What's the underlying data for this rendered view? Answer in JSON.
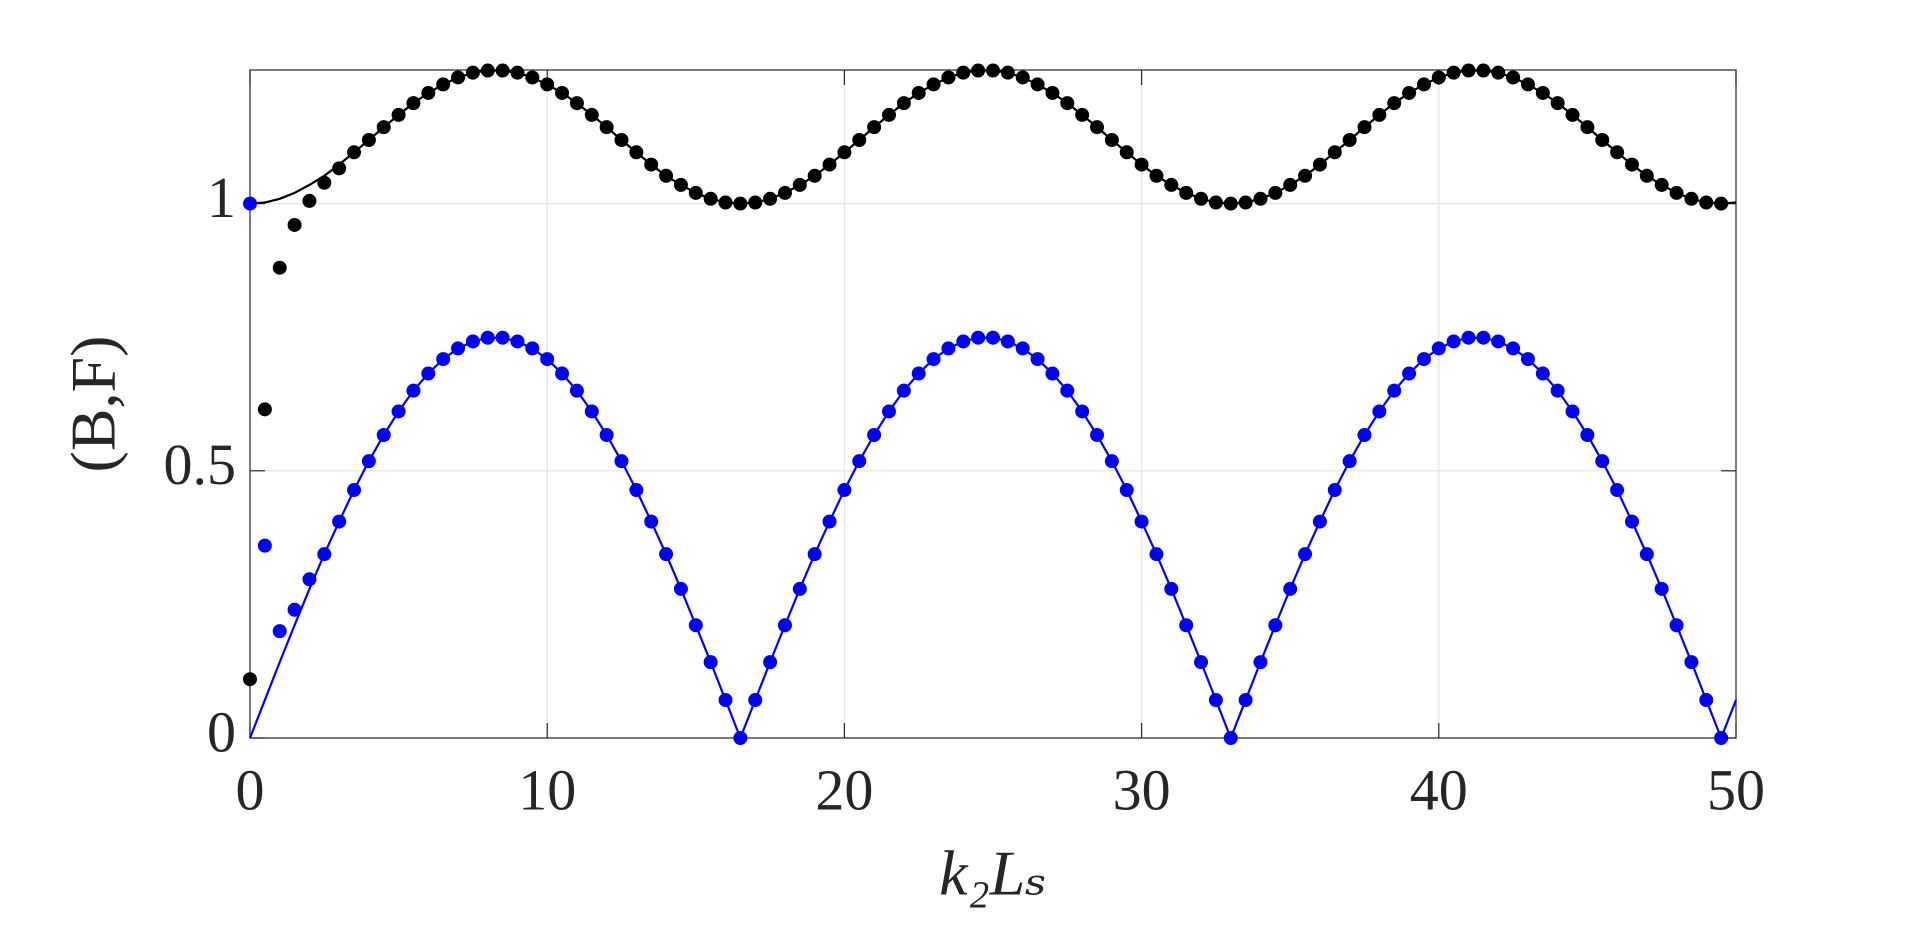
{
  "chart_data": {
    "type": "line",
    "ylabel": "(B,F)",
    "xlabel": "k₂Lₛ",
    "x": [
      0,
      0.5,
      1,
      1.5,
      2,
      2.5,
      3,
      3.5,
      4,
      4.5,
      5,
      5.5,
      6,
      6.5,
      7,
      7.5,
      8,
      8.5,
      9,
      9.5,
      10,
      10.5,
      11,
      11.5,
      12,
      12.5,
      13,
      13.5,
      14,
      14.5,
      15,
      15.5,
      16,
      16.5,
      17,
      17.5,
      18,
      18.5,
      19,
      19.5,
      20,
      20.5,
      21,
      21.5,
      22,
      22.5,
      23,
      23.5,
      24,
      24.5,
      25,
      25.5,
      26,
      26.5,
      27,
      27.5,
      28,
      28.5,
      29,
      29.5,
      30,
      30.5,
      31,
      31.5,
      32,
      32.5,
      33,
      33.5,
      34,
      34.5,
      35,
      35.5,
      36,
      36.5,
      37,
      37.5,
      38,
      38.5,
      39,
      39.5,
      40,
      40.5,
      41,
      41.5,
      42,
      42.5,
      43,
      43.5,
      44,
      44.5,
      45,
      45.5,
      46,
      46.5,
      47,
      47.5,
      48,
      48.5,
      49,
      49.5,
      50
    ],
    "series": [
      {
        "style": "line",
        "color": "#000000",
        "values": [
          1,
          1.002,
          1.009,
          1.02,
          1.035,
          1.052,
          1.073,
          1.096,
          1.119,
          1.143,
          1.166,
          1.188,
          1.207,
          1.223,
          1.236,
          1.245,
          1.249,
          1.249,
          1.245,
          1.236,
          1.223,
          1.207,
          1.188,
          1.166,
          1.143,
          1.119,
          1.096,
          1.073,
          1.052,
          1.035,
          1.02,
          1.009,
          1.002,
          1,
          1.002,
          1.009,
          1.02,
          1.035,
          1.052,
          1.073,
          1.096,
          1.119,
          1.143,
          1.166,
          1.188,
          1.207,
          1.223,
          1.236,
          1.245,
          1.249,
          1.249,
          1.245,
          1.236,
          1.223,
          1.207,
          1.188,
          1.166,
          1.143,
          1.119,
          1.096,
          1.073,
          1.052,
          1.035,
          1.02,
          1.009,
          1.002,
          1,
          1.002,
          1.009,
          1.02,
          1.035,
          1.052,
          1.073,
          1.096,
          1.119,
          1.143,
          1.166,
          1.188,
          1.207,
          1.223,
          1.236,
          1.245,
          1.249,
          1.249,
          1.245,
          1.236,
          1.223,
          1.207,
          1.188,
          1.166,
          1.143,
          1.119,
          1.096,
          1.073,
          1.052,
          1.035,
          1.02,
          1.009,
          1.002,
          1,
          1.002
        ]
      },
      {
        "style": "line",
        "color": "#0000ff",
        "values": [
          0,
          0.071,
          0.142,
          0.211,
          0.279,
          0.344,
          0.405,
          0.464,
          0.518,
          0.567,
          0.611,
          0.65,
          0.682,
          0.709,
          0.729,
          0.742,
          0.749,
          0.749,
          0.742,
          0.729,
          0.709,
          0.682,
          0.65,
          0.611,
          0.567,
          0.518,
          0.464,
          0.405,
          0.344,
          0.279,
          0.211,
          0.142,
          0.071,
          0,
          0.071,
          0.142,
          0.211,
          0.279,
          0.344,
          0.405,
          0.464,
          0.518,
          0.567,
          0.611,
          0.65,
          0.682,
          0.709,
          0.729,
          0.742,
          0.749,
          0.749,
          0.742,
          0.729,
          0.709,
          0.682,
          0.65,
          0.611,
          0.567,
          0.518,
          0.464,
          0.405,
          0.344,
          0.279,
          0.211,
          0.142,
          0.071,
          0,
          0.071,
          0.142,
          0.211,
          0.279,
          0.344,
          0.405,
          0.464,
          0.518,
          0.567,
          0.611,
          0.65,
          0.682,
          0.709,
          0.729,
          0.742,
          0.749,
          0.749,
          0.742,
          0.729,
          0.709,
          0.682,
          0.65,
          0.611,
          0.567,
          0.518,
          0.464,
          0.405,
          0.344,
          0.279,
          0.211,
          0.142,
          0.071,
          0,
          0.071
        ]
      },
      {
        "style": "markers",
        "color": "#000000",
        "values": [
          0.11,
          0.615,
          0.88,
          0.96,
          1.005,
          1.039,
          1.066,
          1.096,
          1.119,
          1.143,
          1.166,
          1.188,
          1.207,
          1.223,
          1.236,
          1.245,
          1.249,
          1.249,
          1.245,
          1.236,
          1.223,
          1.207,
          1.188,
          1.166,
          1.143,
          1.119,
          1.096,
          1.073,
          1.052,
          1.035,
          1.02,
          1.009,
          1.002,
          1,
          1.002,
          1.009,
          1.02,
          1.035,
          1.052,
          1.073,
          1.096,
          1.119,
          1.143,
          1.166,
          1.188,
          1.207,
          1.223,
          1.236,
          1.245,
          1.249,
          1.249,
          1.245,
          1.236,
          1.223,
          1.207,
          1.188,
          1.166,
          1.143,
          1.119,
          1.096,
          1.073,
          1.052,
          1.035,
          1.02,
          1.009,
          1.002,
          1,
          1.002,
          1.009,
          1.02,
          1.035,
          1.052,
          1.073,
          1.096,
          1.119,
          1.143,
          1.166,
          1.188,
          1.207,
          1.223,
          1.236,
          1.245,
          1.249,
          1.249,
          1.245,
          1.236,
          1.223,
          1.207,
          1.188,
          1.166,
          1.143,
          1.119,
          1.096,
          1.073,
          1.052,
          1.035,
          1.02,
          1.009,
          1.002,
          1,
          null
        ]
      },
      {
        "style": "markers",
        "color": "#0000ff",
        "values": [
          1,
          0.36,
          0.2,
          0.24,
          0.297,
          0.344,
          0.405,
          0.464,
          0.518,
          0.567,
          0.611,
          0.65,
          0.682,
          0.709,
          0.729,
          0.742,
          0.749,
          0.749,
          0.742,
          0.729,
          0.709,
          0.682,
          0.65,
          0.611,
          0.567,
          0.518,
          0.464,
          0.405,
          0.344,
          0.279,
          0.211,
          0.142,
          0.071,
          0,
          0.071,
          0.142,
          0.211,
          0.279,
          0.344,
          0.405,
          0.464,
          0.518,
          0.567,
          0.611,
          0.65,
          0.682,
          0.709,
          0.729,
          0.742,
          0.749,
          0.749,
          0.742,
          0.729,
          0.709,
          0.682,
          0.65,
          0.611,
          0.567,
          0.518,
          0.464,
          0.405,
          0.344,
          0.279,
          0.211,
          0.142,
          0.071,
          0,
          0.071,
          0.142,
          0.211,
          0.279,
          0.344,
          0.405,
          0.464,
          0.518,
          0.567,
          0.611,
          0.65,
          0.682,
          0.709,
          0.729,
          0.742,
          0.749,
          0.749,
          0.742,
          0.729,
          0.709,
          0.682,
          0.65,
          0.611,
          0.567,
          0.518,
          0.464,
          0.405,
          0.344,
          0.279,
          0.211,
          0.142,
          0.071,
          0,
          null
        ]
      }
    ],
    "xlim": [
      0,
      50
    ],
    "xticks": [
      0,
      10,
      20,
      30,
      40,
      50
    ],
    "ylim": [
      0,
      1.25
    ],
    "yticks": [
      0,
      0.5,
      1
    ],
    "grid": true
  }
}
